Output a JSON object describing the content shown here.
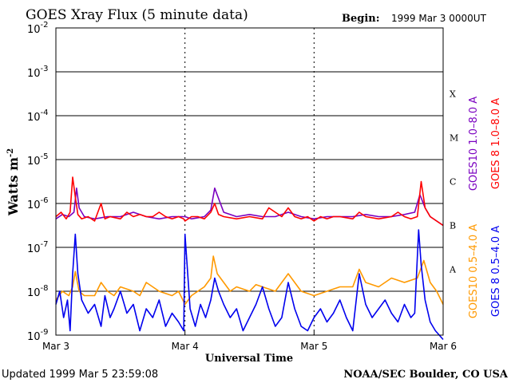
{
  "chart_data": {
    "type": "line",
    "title": "GOES Xray Flux (5 minute data)",
    "begin_label": "Begin:",
    "begin_value": "1999 Mar 3 0000UT",
    "ylabel": "Watts m",
    "ylabel_superscript": "-2",
    "xlabel": "Universal Time",
    "y_scale": "log",
    "ylim": [
      1e-09,
      0.01
    ],
    "y_ticks": [
      {
        "base": "10",
        "exp": "-2"
      },
      {
        "base": "10",
        "exp": "-3"
      },
      {
        "base": "10",
        "exp": "-4"
      },
      {
        "base": "10",
        "exp": "-5"
      },
      {
        "base": "10",
        "exp": "-6"
      },
      {
        "base": "10",
        "exp": "-7"
      },
      {
        "base": "10",
        "exp": "-8"
      },
      {
        "base": "10",
        "exp": "-9"
      }
    ],
    "flare_classes": [
      {
        "label": "X",
        "exp": -3.5
      },
      {
        "label": "M",
        "exp": -4.5
      },
      {
        "label": "C",
        "exp": -5.5
      },
      {
        "label": "B",
        "exp": -6.5
      },
      {
        "label": "A",
        "exp": -7.5
      }
    ],
    "x_unit": "days since 1999 Mar 3 0000UT",
    "xlim": [
      0,
      3
    ],
    "x_ticks": [
      {
        "label": "Mar 3",
        "value": 0
      },
      {
        "label": "Mar 4",
        "value": 1
      },
      {
        "label": "Mar 5",
        "value": 2
      },
      {
        "label": "Mar 6",
        "value": 3
      }
    ],
    "grid_horizontal": true,
    "series": [
      {
        "name": "GOES10 1.0–8.0 A",
        "color": "#7a00c0",
        "x": [
          0,
          0.05,
          0.1,
          0.14,
          0.16,
          0.18,
          0.22,
          0.3,
          0.4,
          0.5,
          0.6,
          0.7,
          0.8,
          0.9,
          1.0,
          1.05,
          1.15,
          1.2,
          1.23,
          1.3,
          1.4,
          1.5,
          1.6,
          1.7,
          1.8,
          1.9,
          2.0,
          2.1,
          2.2,
          2.3,
          2.4,
          2.5,
          2.6,
          2.7,
          2.78,
          2.82,
          2.86,
          2.9,
          2.95,
          3.0
        ],
        "y": [
          -6.35,
          -6.25,
          -6.3,
          -6.2,
          -5.65,
          -6.1,
          -6.3,
          -6.35,
          -6.3,
          -6.3,
          -6.2,
          -6.3,
          -6.35,
          -6.3,
          -6.3,
          -6.35,
          -6.3,
          -6.15,
          -5.65,
          -6.2,
          -6.3,
          -6.25,
          -6.3,
          -6.3,
          -6.2,
          -6.3,
          -6.35,
          -6.3,
          -6.3,
          -6.3,
          -6.25,
          -6.3,
          -6.3,
          -6.25,
          -6.2,
          -5.8,
          -6.1,
          -6.3,
          -6.4,
          -6.5
        ]
      },
      {
        "name": "GOES 8 1.0–8.0 A",
        "color": "#ff0000",
        "x": [
          0,
          0.04,
          0.08,
          0.11,
          0.13,
          0.15,
          0.17,
          0.2,
          0.25,
          0.3,
          0.35,
          0.38,
          0.42,
          0.5,
          0.55,
          0.6,
          0.65,
          0.7,
          0.75,
          0.8,
          0.85,
          0.9,
          0.95,
          0.99,
          1.0,
          1.05,
          1.1,
          1.15,
          1.2,
          1.23,
          1.26,
          1.3,
          1.4,
          1.5,
          1.6,
          1.65,
          1.7,
          1.75,
          1.8,
          1.85,
          1.9,
          1.95,
          2.0,
          2.05,
          2.1,
          2.15,
          2.2,
          2.3,
          2.35,
          2.4,
          2.5,
          2.6,
          2.65,
          2.7,
          2.75,
          2.8,
          2.83,
          2.86,
          2.9,
          2.95,
          3.0
        ],
        "y": [
          -6.3,
          -6.2,
          -6.35,
          -6.2,
          -5.4,
          -5.85,
          -6.25,
          -6.35,
          -6.3,
          -6.4,
          -6.0,
          -6.35,
          -6.3,
          -6.35,
          -6.2,
          -6.3,
          -6.25,
          -6.3,
          -6.3,
          -6.2,
          -6.3,
          -6.35,
          -6.3,
          -6.35,
          -6.4,
          -6.3,
          -6.3,
          -6.35,
          -6.2,
          -6.0,
          -6.25,
          -6.3,
          -6.35,
          -6.3,
          -6.35,
          -6.1,
          -6.2,
          -6.3,
          -6.1,
          -6.3,
          -6.35,
          -6.3,
          -6.4,
          -6.3,
          -6.35,
          -6.3,
          -6.3,
          -6.35,
          -6.2,
          -6.3,
          -6.35,
          -6.3,
          -6.2,
          -6.3,
          -6.35,
          -6.3,
          -5.5,
          -6.1,
          -6.3,
          -6.4,
          -6.5
        ]
      },
      {
        "name": "GOES10 0.5–4.0 A",
        "color": "#ff9900",
        "x": [
          0,
          0.05,
          0.1,
          0.13,
          0.15,
          0.18,
          0.22,
          0.3,
          0.35,
          0.4,
          0.45,
          0.5,
          0.6,
          0.65,
          0.7,
          0.8,
          0.9,
          0.95,
          1.0,
          1.05,
          1.1,
          1.15,
          1.2,
          1.22,
          1.25,
          1.3,
          1.35,
          1.4,
          1.5,
          1.55,
          1.6,
          1.7,
          1.8,
          1.85,
          1.9,
          2.0,
          2.1,
          2.2,
          2.3,
          2.35,
          2.4,
          2.5,
          2.6,
          2.7,
          2.8,
          2.85,
          2.9,
          2.95,
          3.0
        ],
        "y": [
          -8.2,
          -8.0,
          -8.1,
          -7.9,
          -7.55,
          -8.0,
          -8.1,
          -8.1,
          -7.8,
          -8.0,
          -8.1,
          -7.9,
          -8.0,
          -8.1,
          -7.8,
          -8.0,
          -8.1,
          -8.0,
          -8.3,
          -8.1,
          -8.0,
          -7.9,
          -7.7,
          -7.2,
          -7.6,
          -7.8,
          -8.0,
          -7.9,
          -8.0,
          -7.85,
          -7.9,
          -8.0,
          -7.6,
          -7.8,
          -8.0,
          -8.1,
          -8.0,
          -7.9,
          -7.9,
          -7.5,
          -7.8,
          -7.9,
          -7.7,
          -7.8,
          -7.7,
          -7.3,
          -7.8,
          -8.0,
          -8.3
        ]
      },
      {
        "name": "GOES 8 0.5–4.0 A",
        "color": "#0000ee",
        "x": [
          0,
          0.03,
          0.06,
          0.09,
          0.11,
          0.13,
          0.15,
          0.17,
          0.2,
          0.25,
          0.3,
          0.35,
          0.38,
          0.42,
          0.45,
          0.5,
          0.55,
          0.6,
          0.65,
          0.7,
          0.75,
          0.8,
          0.85,
          0.9,
          0.95,
          0.99,
          1.0,
          1.04,
          1.08,
          1.12,
          1.16,
          1.2,
          1.23,
          1.26,
          1.3,
          1.35,
          1.4,
          1.45,
          1.5,
          1.55,
          1.6,
          1.65,
          1.7,
          1.75,
          1.8,
          1.85,
          1.9,
          1.95,
          2.0,
          2.05,
          2.1,
          2.15,
          2.2,
          2.25,
          2.3,
          2.35,
          2.4,
          2.45,
          2.5,
          2.55,
          2.6,
          2.65,
          2.7,
          2.75,
          2.78,
          2.81,
          2.83,
          2.86,
          2.9,
          2.94,
          2.97,
          3.0
        ],
        "y": [
          -8.3,
          -8.0,
          -8.6,
          -8.2,
          -8.9,
          -7.6,
          -6.7,
          -7.6,
          -8.2,
          -8.5,
          -8.3,
          -8.8,
          -8.1,
          -8.6,
          -8.4,
          -8.0,
          -8.5,
          -8.3,
          -8.9,
          -8.4,
          -8.6,
          -8.2,
          -8.8,
          -8.5,
          -8.7,
          -8.9,
          -6.7,
          -8.4,
          -8.8,
          -8.3,
          -8.6,
          -8.2,
          -7.7,
          -8.0,
          -8.3,
          -8.6,
          -8.4,
          -8.9,
          -8.6,
          -8.3,
          -7.9,
          -8.4,
          -8.8,
          -8.6,
          -7.8,
          -8.4,
          -8.8,
          -8.9,
          -8.6,
          -8.4,
          -8.7,
          -8.5,
          -8.2,
          -8.6,
          -8.9,
          -7.6,
          -8.3,
          -8.6,
          -8.4,
          -8.2,
          -8.5,
          -8.7,
          -8.3,
          -8.6,
          -8.5,
          -6.6,
          -7.4,
          -8.2,
          -8.7,
          -8.9,
          -9.0,
          -9.1
        ]
      }
    ]
  },
  "footer": {
    "updated": "Updated 1999 Mar  5 23:59:08",
    "credit": "NOAA/SEC Boulder, CO USA"
  }
}
